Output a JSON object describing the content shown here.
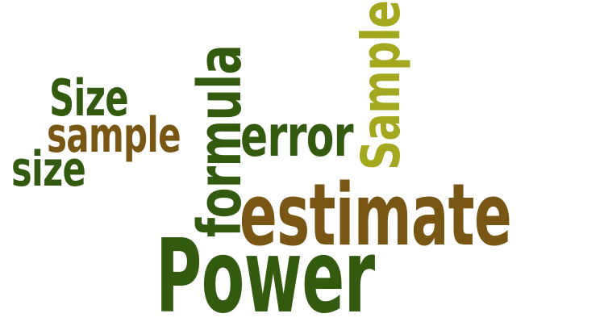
{
  "colors": {
    "dark_green": "#335b10",
    "brown": "#7a5614",
    "olive": "#a3a81e",
    "background": "#ffffff"
  },
  "words": {
    "power": {
      "text": "Power",
      "color": "#335b10"
    },
    "estimate": {
      "text": "estimate",
      "color": "#7a5614"
    },
    "formula": {
      "text": "formula",
      "color": "#335b10"
    },
    "sample_vertical": {
      "text": "Sample",
      "color": "#a3a81e"
    },
    "error": {
      "text": "error",
      "color": "#335b10"
    },
    "sample": {
      "text": "sample",
      "color": "#7a5614"
    },
    "size_cap": {
      "text": "Size",
      "color": "#335b10"
    },
    "size": {
      "text": "size",
      "color": "#335b10"
    }
  }
}
